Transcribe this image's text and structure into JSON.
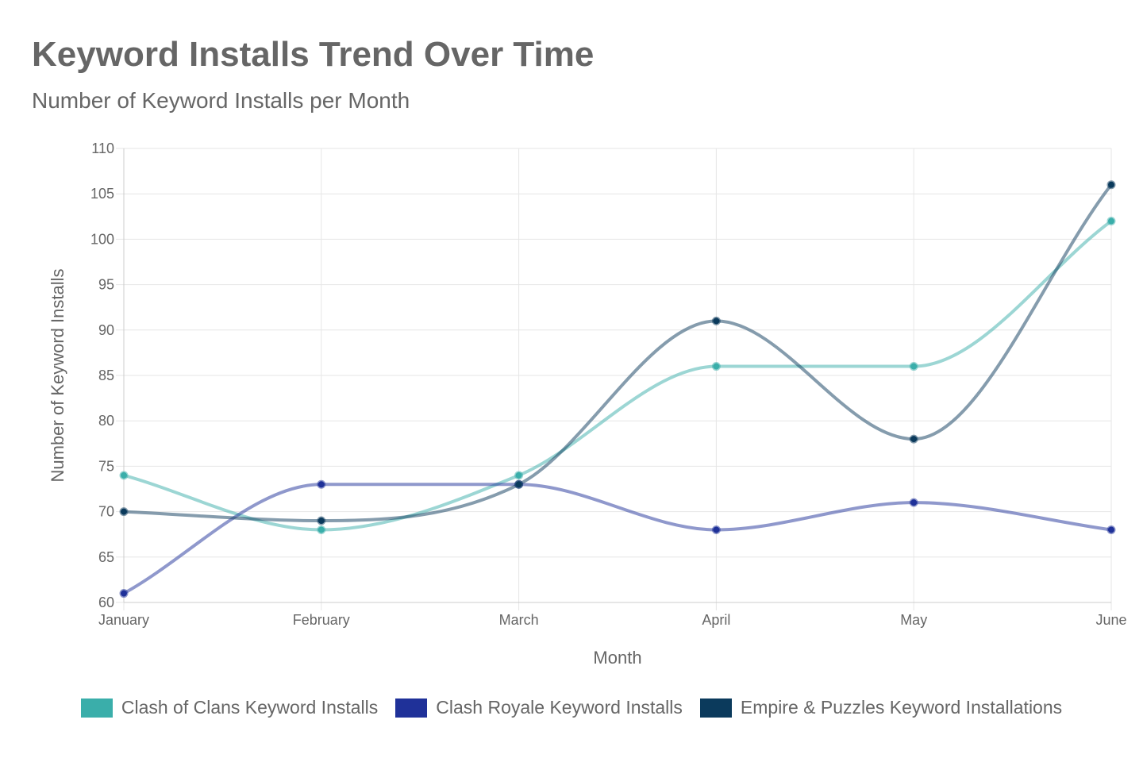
{
  "header": {
    "title": "Keyword Installs Trend Over Time",
    "subtitle": "Number of Keyword Installs per Month"
  },
  "chart_data": {
    "type": "line",
    "title": "Keyword Installs Trend Over Time",
    "subtitle": "Number of Keyword Installs per Month",
    "xlabel": "Month",
    "ylabel": "Number of Keyword Installs",
    "categories": [
      "January",
      "February",
      "March",
      "April",
      "May",
      "June"
    ],
    "ylim": [
      60,
      110
    ],
    "yticks": [
      60,
      65,
      70,
      75,
      80,
      85,
      90,
      95,
      100,
      105,
      110
    ],
    "grid": true,
    "legend_position": "bottom",
    "series": [
      {
        "name": "Clash of Clans Keyword Installs",
        "values": [
          74,
          68,
          74,
          86,
          86,
          102
        ],
        "color": "#3aaeaa"
      },
      {
        "name": "Clash Royale Keyword Installs",
        "values": [
          61,
          73,
          73,
          68,
          71,
          68
        ],
        "color": "#1f3199"
      },
      {
        "name": "Empire & Puzzles Keyword Installations",
        "values": [
          70,
          69,
          73,
          91,
          78,
          106
        ],
        "color": "#0b3a5c"
      }
    ]
  }
}
